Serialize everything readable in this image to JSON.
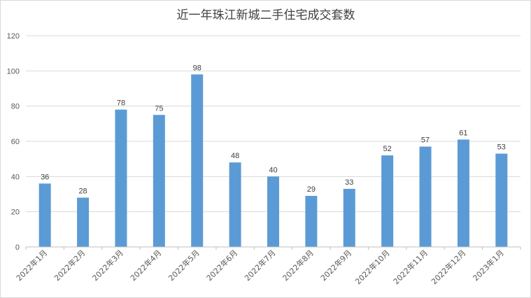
{
  "chart_data": {
    "type": "bar",
    "title": "近一年珠江新城二手住宅成交套数",
    "categories": [
      "2022年1月",
      "2022年2月",
      "2022年3月",
      "2022年4月",
      "2022年5月",
      "2022年6月",
      "2022年7月",
      "2022年8月",
      "2022年9月",
      "2022年10月",
      "2022年11月",
      "2022年12月",
      "2023年1月"
    ],
    "values": [
      36,
      28,
      78,
      75,
      98,
      48,
      40,
      29,
      33,
      52,
      57,
      61,
      53
    ],
    "xlabel": "",
    "ylabel": "",
    "ylim": [
      0,
      120
    ],
    "yticks": [
      0,
      20,
      40,
      60,
      80,
      100,
      120
    ],
    "grid": true,
    "legend": "none",
    "bar_color": "#5b9bd5"
  }
}
